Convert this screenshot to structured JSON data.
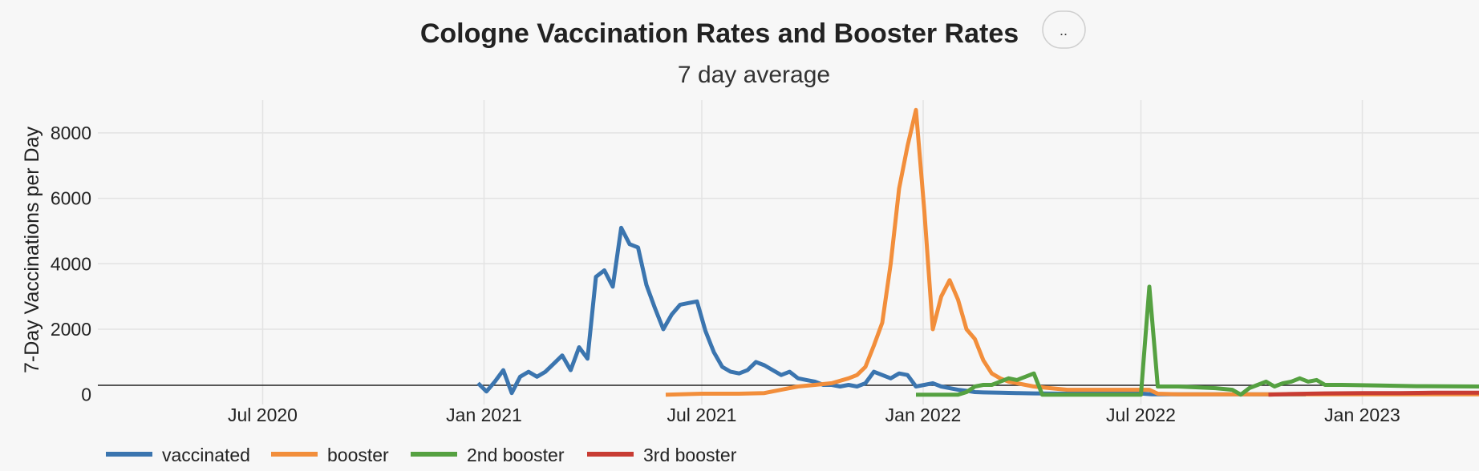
{
  "chart_data": {
    "type": "line",
    "title": "Cologne Vaccination Rates and Booster Rates",
    "subtitle": "7 day average",
    "menu_button_label": "..",
    "ylabel": "7-Day Vaccinations per Day",
    "xlabel": "",
    "xlim": [
      "2020-02-15",
      "2023-04-08"
    ],
    "ylim": [
      -300,
      9000
    ],
    "x_ticks": [
      {
        "date": "2020-07-01",
        "label": "Jul 2020"
      },
      {
        "date": "2021-01-01",
        "label": "Jan 2021"
      },
      {
        "date": "2021-07-01",
        "label": "Jul 2021"
      },
      {
        "date": "2022-01-01",
        "label": "Jan 2022"
      },
      {
        "date": "2022-07-01",
        "label": "Jul 2022"
      },
      {
        "date": "2023-01-01",
        "label": "Jan 2023"
      }
    ],
    "y_ticks": [
      0,
      2000,
      4000,
      6000,
      8000
    ],
    "grid": true,
    "legend_position": "bottom-left",
    "series": [
      {
        "name": "vaccinated",
        "color": "#3b75af",
        "points": [
          [
            "2020-12-27",
            350
          ],
          [
            "2021-01-03",
            100
          ],
          [
            "2021-01-10",
            400
          ],
          [
            "2021-01-17",
            750
          ],
          [
            "2021-01-24",
            50
          ],
          [
            "2021-01-31",
            550
          ],
          [
            "2021-02-07",
            700
          ],
          [
            "2021-02-14",
            550
          ],
          [
            "2021-02-21",
            700
          ],
          [
            "2021-02-28",
            950
          ],
          [
            "2021-03-07",
            1200
          ],
          [
            "2021-03-14",
            750
          ],
          [
            "2021-03-21",
            1450
          ],
          [
            "2021-03-28",
            1100
          ],
          [
            "2021-04-04",
            3600
          ],
          [
            "2021-04-11",
            3800
          ],
          [
            "2021-04-18",
            3300
          ],
          [
            "2021-04-25",
            5100
          ],
          [
            "2021-05-02",
            4600
          ],
          [
            "2021-05-09",
            4500
          ],
          [
            "2021-05-16",
            3350
          ],
          [
            "2021-05-23",
            2650
          ],
          [
            "2021-05-30",
            2000
          ],
          [
            "2021-06-06",
            2450
          ],
          [
            "2021-06-13",
            2750
          ],
          [
            "2021-06-20",
            2800
          ],
          [
            "2021-06-27",
            2850
          ],
          [
            "2021-07-04",
            1950
          ],
          [
            "2021-07-11",
            1300
          ],
          [
            "2021-07-18",
            850
          ],
          [
            "2021-07-25",
            700
          ],
          [
            "2021-08-01",
            650
          ],
          [
            "2021-08-08",
            750
          ],
          [
            "2021-08-15",
            1000
          ],
          [
            "2021-08-22",
            900
          ],
          [
            "2021-08-29",
            750
          ],
          [
            "2021-09-05",
            600
          ],
          [
            "2021-09-12",
            700
          ],
          [
            "2021-09-19",
            500
          ],
          [
            "2021-09-26",
            450
          ],
          [
            "2021-10-03",
            400
          ],
          [
            "2021-10-10",
            300
          ],
          [
            "2021-10-17",
            300
          ],
          [
            "2021-10-24",
            250
          ],
          [
            "2021-10-31",
            300
          ],
          [
            "2021-11-07",
            250
          ],
          [
            "2021-11-14",
            350
          ],
          [
            "2021-11-21",
            700
          ],
          [
            "2021-11-28",
            600
          ],
          [
            "2021-12-05",
            500
          ],
          [
            "2021-12-12",
            650
          ],
          [
            "2021-12-19",
            600
          ],
          [
            "2021-12-26",
            250
          ],
          [
            "2022-01-02",
            300
          ],
          [
            "2022-01-09",
            350
          ],
          [
            "2022-01-16",
            250
          ],
          [
            "2022-01-23",
            200
          ],
          [
            "2022-01-30",
            150
          ],
          [
            "2022-02-06",
            120
          ],
          [
            "2022-02-13",
            80
          ],
          [
            "2022-02-20",
            70
          ],
          [
            "2022-03-06",
            60
          ],
          [
            "2022-03-20",
            50
          ],
          [
            "2022-04-03",
            40
          ],
          [
            "2022-05-01",
            30
          ],
          [
            "2022-06-01",
            30
          ],
          [
            "2022-07-03",
            30
          ],
          [
            "2022-07-10",
            10
          ],
          [
            "2022-10-01",
            10
          ],
          [
            "2022-11-15",
            5
          ]
        ]
      },
      {
        "name": "booster",
        "color": "#f28e3b",
        "points": [
          [
            "2021-06-01",
            0
          ],
          [
            "2021-07-01",
            30
          ],
          [
            "2021-08-01",
            30
          ],
          [
            "2021-08-22",
            50
          ],
          [
            "2021-09-05",
            150
          ],
          [
            "2021-09-19",
            250
          ],
          [
            "2021-10-03",
            300
          ],
          [
            "2021-10-17",
            350
          ],
          [
            "2021-10-31",
            500
          ],
          [
            "2021-11-07",
            600
          ],
          [
            "2021-11-14",
            850
          ],
          [
            "2021-11-21",
            1500
          ],
          [
            "2021-11-28",
            2200
          ],
          [
            "2021-12-05",
            4000
          ],
          [
            "2021-12-12",
            6300
          ],
          [
            "2021-12-19",
            7600
          ],
          [
            "2021-12-26",
            8700
          ],
          [
            "2022-01-02",
            5600
          ],
          [
            "2022-01-09",
            2000
          ],
          [
            "2022-01-16",
            3000
          ],
          [
            "2022-01-23",
            3500
          ],
          [
            "2022-01-30",
            2900
          ],
          [
            "2022-02-06",
            2000
          ],
          [
            "2022-02-13",
            1700
          ],
          [
            "2022-02-20",
            1050
          ],
          [
            "2022-02-27",
            650
          ],
          [
            "2022-03-06",
            500
          ],
          [
            "2022-03-13",
            400
          ],
          [
            "2022-03-20",
            350
          ],
          [
            "2022-03-27",
            300
          ],
          [
            "2022-04-03",
            250
          ],
          [
            "2022-04-17",
            200
          ],
          [
            "2022-05-01",
            150
          ],
          [
            "2022-06-01",
            150
          ],
          [
            "2022-07-01",
            150
          ],
          [
            "2022-07-08",
            150
          ],
          [
            "2022-07-15",
            30
          ],
          [
            "2022-08-01",
            10
          ],
          [
            "2022-09-01",
            10
          ],
          [
            "2022-10-01",
            10
          ],
          [
            "2022-12-01",
            10
          ],
          [
            "2023-04-08",
            10
          ]
        ]
      },
      {
        "name": "2nd booster",
        "color": "#55a141",
        "points": [
          [
            "2021-12-26",
            0
          ],
          [
            "2022-01-30",
            0
          ],
          [
            "2022-02-06",
            80
          ],
          [
            "2022-02-13",
            250
          ],
          [
            "2022-02-20",
            300
          ],
          [
            "2022-02-27",
            300
          ],
          [
            "2022-03-06",
            400
          ],
          [
            "2022-03-13",
            500
          ],
          [
            "2022-03-20",
            450
          ],
          [
            "2022-03-27",
            550
          ],
          [
            "2022-04-03",
            650
          ],
          [
            "2022-04-10",
            0
          ],
          [
            "2022-05-01",
            0
          ],
          [
            "2022-06-01",
            0
          ],
          [
            "2022-07-01",
            0
          ],
          [
            "2022-07-08",
            3300
          ],
          [
            "2022-07-15",
            250
          ],
          [
            "2022-08-01",
            250
          ],
          [
            "2022-09-01",
            200
          ],
          [
            "2022-09-15",
            150
          ],
          [
            "2022-09-22",
            0
          ],
          [
            "2022-09-29",
            200
          ],
          [
            "2022-10-06",
            300
          ],
          [
            "2022-10-13",
            400
          ],
          [
            "2022-10-20",
            250
          ],
          [
            "2022-10-27",
            350
          ],
          [
            "2022-11-03",
            400
          ],
          [
            "2022-11-10",
            500
          ],
          [
            "2022-11-17",
            400
          ],
          [
            "2022-11-24",
            450
          ],
          [
            "2022-12-01",
            300
          ],
          [
            "2022-12-15",
            300
          ],
          [
            "2023-01-15",
            280
          ],
          [
            "2023-02-15",
            260
          ],
          [
            "2023-04-08",
            250
          ]
        ]
      },
      {
        "name": "3rd booster",
        "color": "#c83c33",
        "points": [
          [
            "2022-10-15",
            0
          ],
          [
            "2022-11-01",
            20
          ],
          [
            "2022-12-01",
            40
          ],
          [
            "2023-01-01",
            50
          ],
          [
            "2023-02-01",
            50
          ],
          [
            "2023-03-01",
            60
          ],
          [
            "2023-04-08",
            60
          ]
        ]
      }
    ]
  }
}
